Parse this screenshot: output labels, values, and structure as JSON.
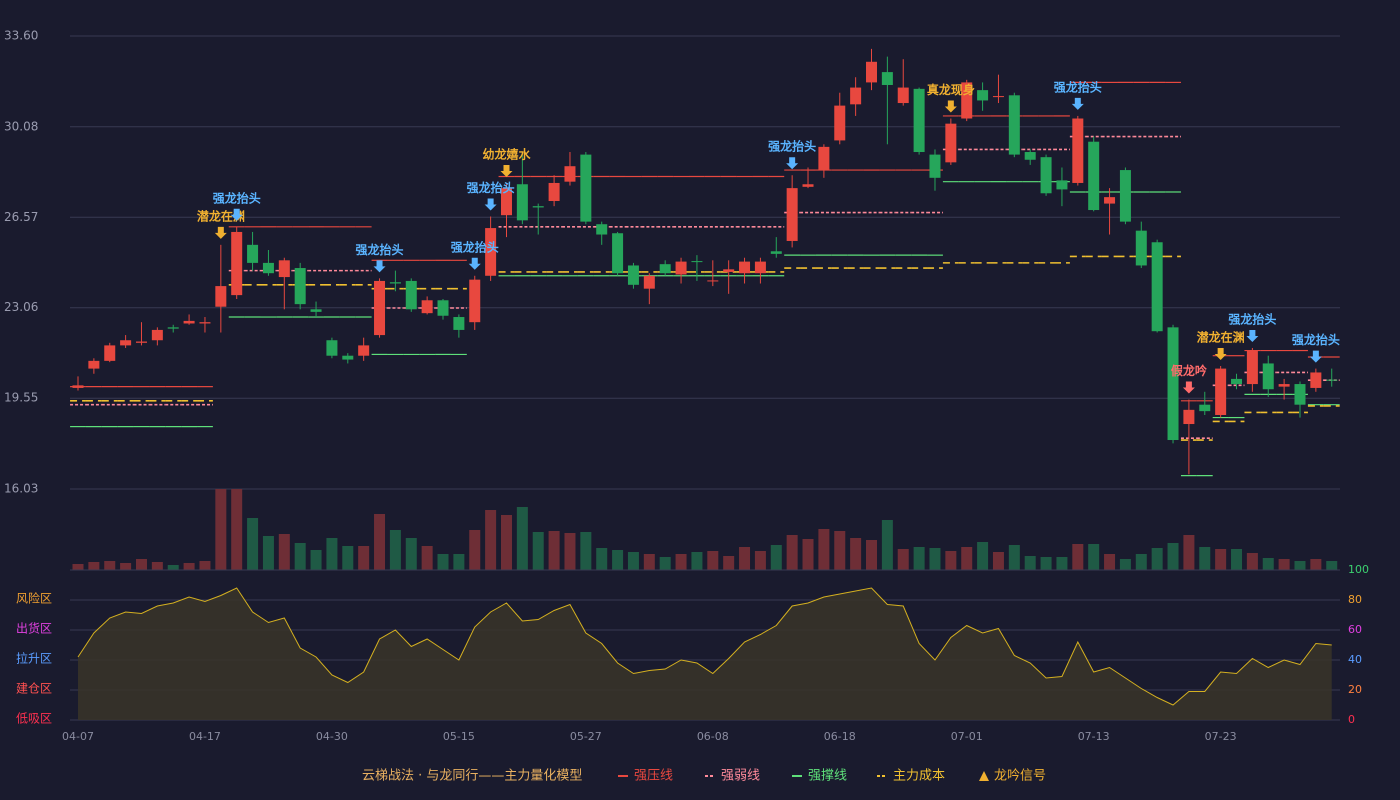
{
  "chart_data": [
    {
      "type": "candlestick",
      "categories": [
        "04-07",
        null,
        null,
        null,
        null,
        null,
        null,
        null,
        "04-17",
        null,
        null,
        null,
        null,
        null,
        null,
        null,
        "04-30",
        null,
        null,
        null,
        null,
        null,
        null,
        null,
        "05-15",
        null,
        null,
        null,
        null,
        null,
        null,
        null,
        "05-27",
        null,
        null,
        null,
        null,
        null,
        null,
        null,
        "06-08",
        null,
        null,
        null,
        null,
        null,
        null,
        null,
        "06-18",
        null,
        null,
        null,
        null,
        null,
        null,
        null,
        "07-01",
        null,
        null,
        null,
        null,
        null,
        null,
        null,
        "07-13",
        null,
        null,
        null,
        null,
        null,
        null,
        null,
        "07-23",
        null,
        null,
        null,
        null,
        null,
        null,
        null
      ],
      "open": [
        19.95,
        20.7,
        21.0,
        21.6,
        21.7,
        21.8,
        22.3,
        22.45,
        22.45,
        23.1,
        23.55,
        25.5,
        24.8,
        24.25,
        24.6,
        23.0,
        21.8,
        21.2,
        21.2,
        22.0,
        24.05,
        24.1,
        22.85,
        23.35,
        22.7,
        22.5,
        24.3,
        26.65,
        27.85,
        27.0,
        27.2,
        27.95,
        29.0,
        26.3,
        25.95,
        24.7,
        23.8,
        24.75,
        24.35,
        24.87,
        24.08,
        24.45,
        24.4,
        24.4,
        25.25,
        25.65,
        27.75,
        28.4,
        29.55,
        30.95,
        31.8,
        32.2,
        31.0,
        31.55,
        29.0,
        28.7,
        30.4,
        31.5,
        31.23,
        31.3,
        29.1,
        28.9,
        28.0,
        27.9,
        29.5,
        27.1,
        28.4,
        26.05,
        25.6,
        22.3,
        18.55,
        19.3,
        18.9,
        20.3,
        20.1,
        20.9,
        20.0,
        20.1,
        19.95,
        20.27
      ],
      "high": [
        20.4,
        21.1,
        21.7,
        22.0,
        22.5,
        22.3,
        22.4,
        22.8,
        22.7,
        25.5,
        26.2,
        26.0,
        25.3,
        25.0,
        24.8,
        23.3,
        21.9,
        21.3,
        21.9,
        24.2,
        24.5,
        24.2,
        23.5,
        23.4,
        22.8,
        24.3,
        26.6,
        27.9,
        29.1,
        27.1,
        28.2,
        29.1,
        29.1,
        26.4,
        26.0,
        24.8,
        24.4,
        24.9,
        25.0,
        25.1,
        24.9,
        24.9,
        25.0,
        25.0,
        25.8,
        28.2,
        28.5,
        29.4,
        31.4,
        32.0,
        33.1,
        32.8,
        32.7,
        31.6,
        29.2,
        30.4,
        31.9,
        31.8,
        32.1,
        31.4,
        29.2,
        29.0,
        28.5,
        30.5,
        29.7,
        27.7,
        28.5,
        26.4,
        25.7,
        22.4,
        19.5,
        19.8,
        20.8,
        20.5,
        21.5,
        21.2,
        20.3,
        20.2,
        20.7,
        20.7
      ],
      "low": [
        19.85,
        20.5,
        20.95,
        21.5,
        21.6,
        21.6,
        22.1,
        22.4,
        22.1,
        22.1,
        23.4,
        24.5,
        24.3,
        23.0,
        23.0,
        22.7,
        21.1,
        20.9,
        21.0,
        21.9,
        23.7,
        22.9,
        22.8,
        22.6,
        21.9,
        22.2,
        24.1,
        25.8,
        26.3,
        25.9,
        27.0,
        27.8,
        26.3,
        25.5,
        24.3,
        23.8,
        23.2,
        24.3,
        24.0,
        24.1,
        23.9,
        23.6,
        24.0,
        24.0,
        25.0,
        25.4,
        27.7,
        28.1,
        29.4,
        30.5,
        31.5,
        29.4,
        30.9,
        29.0,
        27.6,
        28.6,
        30.3,
        30.7,
        31.0,
        28.9,
        28.6,
        27.4,
        27.0,
        27.8,
        26.8,
        25.9,
        26.3,
        24.6,
        22.1,
        17.8,
        16.6,
        18.9,
        18.8,
        19.9,
        19.8,
        19.6,
        19.5,
        18.8,
        19.8,
        20.0
      ],
      "close": [
        20.05,
        21.0,
        21.6,
        21.8,
        21.75,
        22.2,
        22.25,
        22.55,
        22.5,
        23.9,
        26.0,
        24.8,
        24.4,
        24.9,
        23.2,
        22.9,
        21.2,
        21.05,
        21.6,
        24.1,
        24.0,
        23.0,
        23.35,
        22.75,
        22.2,
        24.15,
        26.15,
        27.7,
        26.45,
        26.95,
        27.9,
        28.55,
        26.4,
        25.9,
        24.4,
        23.95,
        24.3,
        24.4,
        24.85,
        24.83,
        24.12,
        24.55,
        24.85,
        24.85,
        25.15,
        27.7,
        27.85,
        29.3,
        30.9,
        31.6,
        32.6,
        31.7,
        31.6,
        29.1,
        28.1,
        30.2,
        31.8,
        31.1,
        31.27,
        29.0,
        28.8,
        27.5,
        27.65,
        30.4,
        26.85,
        27.35,
        26.4,
        24.7,
        22.15,
        17.93,
        19.1,
        19.05,
        20.7,
        20.1,
        21.4,
        19.9,
        20.1,
        19.3,
        20.55,
        20.23
      ],
      "up_color": "#e8483f",
      "down_color": "#26a65b",
      "ylim": [
        16.03,
        33.6
      ],
      "yticks": [
        16.03,
        19.55,
        23.06,
        26.57,
        30.08,
        {
          "value": 33.6,
          "label": "33.60"
        }
      ],
      "grid": true,
      "legend_title": "云梯战法 · 与龙同行——主力量化模型",
      "levels": [
        {
          "name": "强压线",
          "color": "#e8483f",
          "dash": "none",
          "values": [
            20,
            20,
            20,
            20,
            20,
            20,
            20,
            20,
            20,
            null,
            26.2,
            26.2,
            26.2,
            26.2,
            26.2,
            26.2,
            26.2,
            26.2,
            26.2,
            24.9,
            24.9,
            24.9,
            24.9,
            24.9,
            24.9,
            null,
            null,
            28.15,
            28.15,
            28.15,
            28.15,
            28.15,
            28.15,
            28.15,
            28.15,
            28.15,
            28.15,
            28.15,
            28.15,
            28.15,
            28.15,
            28.15,
            28.15,
            28.15,
            28.15,
            28.4,
            28.4,
            28.4,
            28.4,
            28.4,
            28.4,
            28.4,
            28.4,
            28.4,
            28.4,
            30.5,
            30.5,
            30.5,
            30.5,
            30.5,
            30.5,
            30.5,
            30.5,
            31.8,
            31.8,
            31.8,
            31.8,
            31.8,
            31.8,
            31.8,
            19.45,
            19.45,
            21.2,
            21.2,
            21.4,
            21.4,
            21.4,
            21.4,
            21.15,
            21.15
          ]
        },
        {
          "name": "强弱线",
          "color": "#ff8a9a",
          "dash": "3,2",
          "values": [
            19.3,
            19.3,
            19.3,
            19.3,
            19.3,
            19.3,
            19.3,
            19.3,
            19.3,
            null,
            24.5,
            24.5,
            24.5,
            24.5,
            24.5,
            24.5,
            24.5,
            24.5,
            24.5,
            23.05,
            23.05,
            23.05,
            23.05,
            23.05,
            23.05,
            null,
            null,
            26.2,
            26.2,
            26.2,
            26.2,
            26.2,
            26.2,
            26.2,
            26.2,
            26.2,
            26.2,
            26.2,
            26.2,
            26.2,
            26.2,
            26.2,
            26.2,
            26.2,
            26.2,
            26.75,
            26.75,
            26.75,
            26.75,
            26.75,
            26.75,
            26.75,
            26.75,
            26.75,
            26.75,
            29.2,
            29.2,
            29.2,
            29.2,
            29.2,
            29.2,
            29.2,
            29.2,
            29.7,
            29.7,
            29.7,
            29.7,
            29.7,
            29.7,
            29.7,
            18.0,
            18.0,
            20.05,
            20.05,
            20.55,
            20.55,
            20.55,
            20.55,
            20.25,
            20.25
          ]
        },
        {
          "name": "强撑线",
          "color": "#5ee07a",
          "dash": "none",
          "values": [
            18.45,
            18.45,
            18.45,
            18.45,
            18.45,
            18.45,
            18.45,
            18.45,
            18.45,
            null,
            22.7,
            22.7,
            22.7,
            22.7,
            22.7,
            22.7,
            22.7,
            22.7,
            22.7,
            21.25,
            21.25,
            21.25,
            21.25,
            21.25,
            21.25,
            null,
            null,
            24.3,
            24.3,
            24.3,
            24.3,
            24.3,
            24.3,
            24.3,
            24.3,
            24.3,
            24.3,
            24.3,
            24.3,
            24.3,
            24.3,
            24.3,
            24.3,
            24.3,
            24.3,
            25.1,
            25.1,
            25.1,
            25.1,
            25.1,
            25.1,
            25.1,
            25.1,
            25.1,
            25.1,
            27.95,
            27.95,
            27.95,
            27.95,
            27.95,
            27.95,
            27.95,
            27.95,
            27.55,
            27.55,
            27.55,
            27.55,
            27.55,
            27.55,
            27.55,
            16.55,
            16.55,
            18.8,
            18.8,
            19.7,
            19.7,
            19.7,
            19.7,
            19.3,
            19.3
          ]
        },
        {
          "name": "主力成本",
          "color": "#f0c030",
          "dash": "7,5",
          "values": [
            19.45,
            19.45,
            19.45,
            19.45,
            19.45,
            19.45,
            19.45,
            19.45,
            19.45,
            null,
            23.95,
            23.95,
            23.95,
            23.95,
            23.95,
            23.95,
            23.95,
            23.95,
            23.95,
            23.8,
            23.8,
            23.8,
            23.8,
            23.8,
            23.8,
            null,
            null,
            24.45,
            24.45,
            24.45,
            24.45,
            24.45,
            24.45,
            24.45,
            24.45,
            24.45,
            24.45,
            24.45,
            24.45,
            24.45,
            24.45,
            24.45,
            24.45,
            24.45,
            24.45,
            24.6,
            24.6,
            24.6,
            24.6,
            24.6,
            24.6,
            24.6,
            24.6,
            24.6,
            24.6,
            24.8,
            24.8,
            24.8,
            24.8,
            24.8,
            24.8,
            24.8,
            24.8,
            25.05,
            25.05,
            25.05,
            25.05,
            25.05,
            25.05,
            25.05,
            17.93,
            17.93,
            18.65,
            18.65,
            19.0,
            19.0,
            19.0,
            19.0,
            19.25,
            19.25
          ]
        }
      ],
      "signal_legend": "龙吟信号",
      "signal_legend_color": "#f0b030",
      "signals": [
        {
          "index": 9,
          "label": "潜龙在渊",
          "color": "#f0b030"
        },
        {
          "index": 10,
          "label": "强龙抬头",
          "color": "#5ab4ff"
        },
        {
          "index": 19,
          "label": "强龙抬头",
          "color": "#5ab4ff"
        },
        {
          "index": 25,
          "label": "强龙抬头",
          "color": "#5ab4ff"
        },
        {
          "index": 26,
          "label": "强龙抬头",
          "color": "#5ab4ff"
        },
        {
          "index": 27,
          "label": "幼龙嬉水",
          "color": "#f0b030"
        },
        {
          "index": 45,
          "label": "强龙抬头",
          "color": "#5ab4ff"
        },
        {
          "index": 55,
          "label": "真龙现身",
          "color": "#f0b030"
        },
        {
          "index": 63,
          "label": "强龙抬头",
          "color": "#5ab4ff"
        },
        {
          "index": 70,
          "label": "假龙吟",
          "color": "#ff6b6b"
        },
        {
          "index": 72,
          "label": "潜龙在渊",
          "color": "#f0b030"
        },
        {
          "index": 74,
          "label": "强龙抬头",
          "color": "#5ab4ff"
        },
        {
          "index": 78,
          "label": "强龙抬头",
          "color": "#5ab4ff"
        }
      ]
    },
    {
      "type": "bar",
      "values": [
        6,
        8,
        9,
        7,
        11,
        8,
        5,
        7,
        9,
        81,
        81,
        52,
        34,
        36,
        27,
        20,
        32,
        24,
        24,
        56,
        40,
        32,
        24,
        16,
        16,
        40,
        60,
        55,
        63,
        38,
        39,
        37,
        38,
        22,
        20,
        18,
        16,
        13,
        16,
        18,
        19,
        14,
        23,
        19,
        25,
        35,
        31,
        41,
        39,
        32,
        30,
        50,
        21,
        23,
        22,
        19,
        23,
        28,
        18,
        25,
        14,
        13,
        13,
        26,
        26,
        16,
        11,
        16,
        22,
        27,
        35,
        23,
        21,
        21,
        17,
        12,
        11,
        9,
        11,
        9
      ],
      "up_color": "#6e2e36",
      "down_color": "#1f5a45"
    },
    {
      "type": "area",
      "values": [
        42,
        58,
        68,
        72,
        71,
        76,
        78,
        82,
        79,
        83,
        88,
        72,
        65,
        68,
        48,
        42,
        30,
        25,
        32,
        54,
        60,
        49,
        54,
        47,
        40,
        62,
        72,
        78,
        66,
        67,
        73,
        77,
        58,
        51,
        38,
        31,
        33,
        34,
        40,
        38,
        31,
        41,
        52,
        57,
        63,
        76,
        78,
        82,
        84,
        86,
        88,
        77,
        76,
        51,
        40,
        55,
        63,
        58,
        61,
        43,
        38,
        28,
        29,
        52,
        32,
        35,
        28,
        21,
        15,
        10,
        19,
        19,
        32,
        31,
        41,
        35,
        40,
        37,
        51,
        50
      ],
      "color": "#d4b020",
      "fill": "#3a3428",
      "ylim": [
        0,
        100
      ],
      "yticks": [
        0,
        20,
        40,
        60,
        80,
        100
      ],
      "ytick_colors": [
        "#ff3050",
        "#ff8040",
        "#5a9cff",
        "#e040e0",
        "#f0a030",
        "#3cd070"
      ],
      "zones": [
        {
          "value": 80,
          "label": "风险区",
          "color": "#f0a030"
        },
        {
          "value": 60,
          "label": "出货区",
          "color": "#e040e0"
        },
        {
          "value": 40,
          "label": "拉升区",
          "color": "#5a9cff"
        },
        {
          "value": 20,
          "label": "建仓区",
          "color": "#ff5050"
        },
        {
          "value": 0,
          "label": "低吸区",
          "color": "#ff3050"
        }
      ]
    }
  ]
}
